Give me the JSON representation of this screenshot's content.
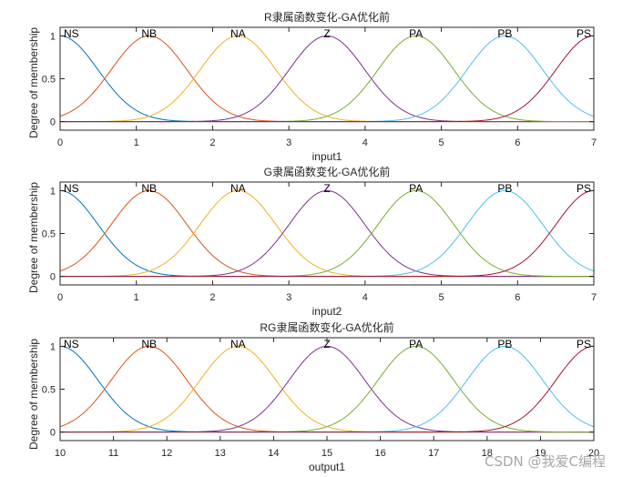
{
  "chart_data": [
    {
      "type": "line",
      "title": "R隶属函数变化-GA优化前",
      "xlabel": "input1",
      "ylabel": "Degree of membership",
      "xlim": [
        0,
        7
      ],
      "ylim": [
        -0.1,
        1.1
      ],
      "xticks": [
        0,
        1,
        2,
        3,
        4,
        5,
        6,
        7
      ],
      "yticks": [
        0,
        0.5,
        1
      ],
      "grid": false,
      "mf_shape": "gaussian",
      "series": [
        {
          "name": "NS",
          "center": 0,
          "sigma": 0.4955,
          "color": "#0072BD"
        },
        {
          "name": "NB",
          "center": 1.1667,
          "sigma": 0.4955,
          "color": "#D95319"
        },
        {
          "name": "NA",
          "center": 2.3333,
          "sigma": 0.4955,
          "color": "#EDB120"
        },
        {
          "name": "Z",
          "center": 3.5,
          "sigma": 0.4955,
          "color": "#7E2F8E"
        },
        {
          "name": "PA",
          "center": 4.6667,
          "sigma": 0.4955,
          "color": "#77AC30"
        },
        {
          "name": "PB",
          "center": 5.8333,
          "sigma": 0.4955,
          "color": "#4DBEEE"
        },
        {
          "name": "PS",
          "center": 7,
          "sigma": 0.4955,
          "color": "#A2142F"
        }
      ]
    },
    {
      "type": "line",
      "title": "G隶属函数变化-GA优化前",
      "xlabel": "input2",
      "ylabel": "Degree of membership",
      "xlim": [
        0,
        7
      ],
      "ylim": [
        -0.1,
        1.1
      ],
      "xticks": [
        0,
        1,
        2,
        3,
        4,
        5,
        6,
        7
      ],
      "yticks": [
        0,
        0.5,
        1
      ],
      "grid": false,
      "mf_shape": "gaussian",
      "series": [
        {
          "name": "NS",
          "center": 0,
          "sigma": 0.4955,
          "color": "#0072BD"
        },
        {
          "name": "NB",
          "center": 1.1667,
          "sigma": 0.4955,
          "color": "#D95319"
        },
        {
          "name": "NA",
          "center": 2.3333,
          "sigma": 0.4955,
          "color": "#EDB120"
        },
        {
          "name": "Z",
          "center": 3.5,
          "sigma": 0.4955,
          "color": "#7E2F8E"
        },
        {
          "name": "PA",
          "center": 4.6667,
          "sigma": 0.4955,
          "color": "#77AC30"
        },
        {
          "name": "PB",
          "center": 5.8333,
          "sigma": 0.4955,
          "color": "#4DBEEE"
        },
        {
          "name": "PS",
          "center": 7,
          "sigma": 0.4955,
          "color": "#A2142F"
        }
      ]
    },
    {
      "type": "line",
      "title": "RG隶属函数变化-GA优化前",
      "xlabel": "output1",
      "ylabel": "Degree of membership",
      "xlim": [
        10,
        20
      ],
      "ylim": [
        -0.1,
        1.1
      ],
      "xticks": [
        10,
        11,
        12,
        13,
        14,
        15,
        16,
        17,
        18,
        19,
        20
      ],
      "yticks": [
        0,
        0.5,
        1
      ],
      "grid": false,
      "mf_shape": "gaussian",
      "series": [
        {
          "name": "NS",
          "center": 10,
          "sigma": 0.7078,
          "color": "#0072BD"
        },
        {
          "name": "NB",
          "center": 11.6667,
          "sigma": 0.7078,
          "color": "#D95319"
        },
        {
          "name": "NA",
          "center": 13.3333,
          "sigma": 0.7078,
          "color": "#EDB120"
        },
        {
          "name": "Z",
          "center": 15,
          "sigma": 0.7078,
          "color": "#7E2F8E"
        },
        {
          "name": "PA",
          "center": 16.6667,
          "sigma": 0.7078,
          "color": "#77AC30"
        },
        {
          "name": "PB",
          "center": 18.3333,
          "sigma": 0.7078,
          "color": "#4DBEEE"
        },
        {
          "name": "PS",
          "center": 20,
          "sigma": 0.7078,
          "color": "#A2142F"
        }
      ]
    }
  ],
  "watermark": "CSDN @我爱C编程"
}
